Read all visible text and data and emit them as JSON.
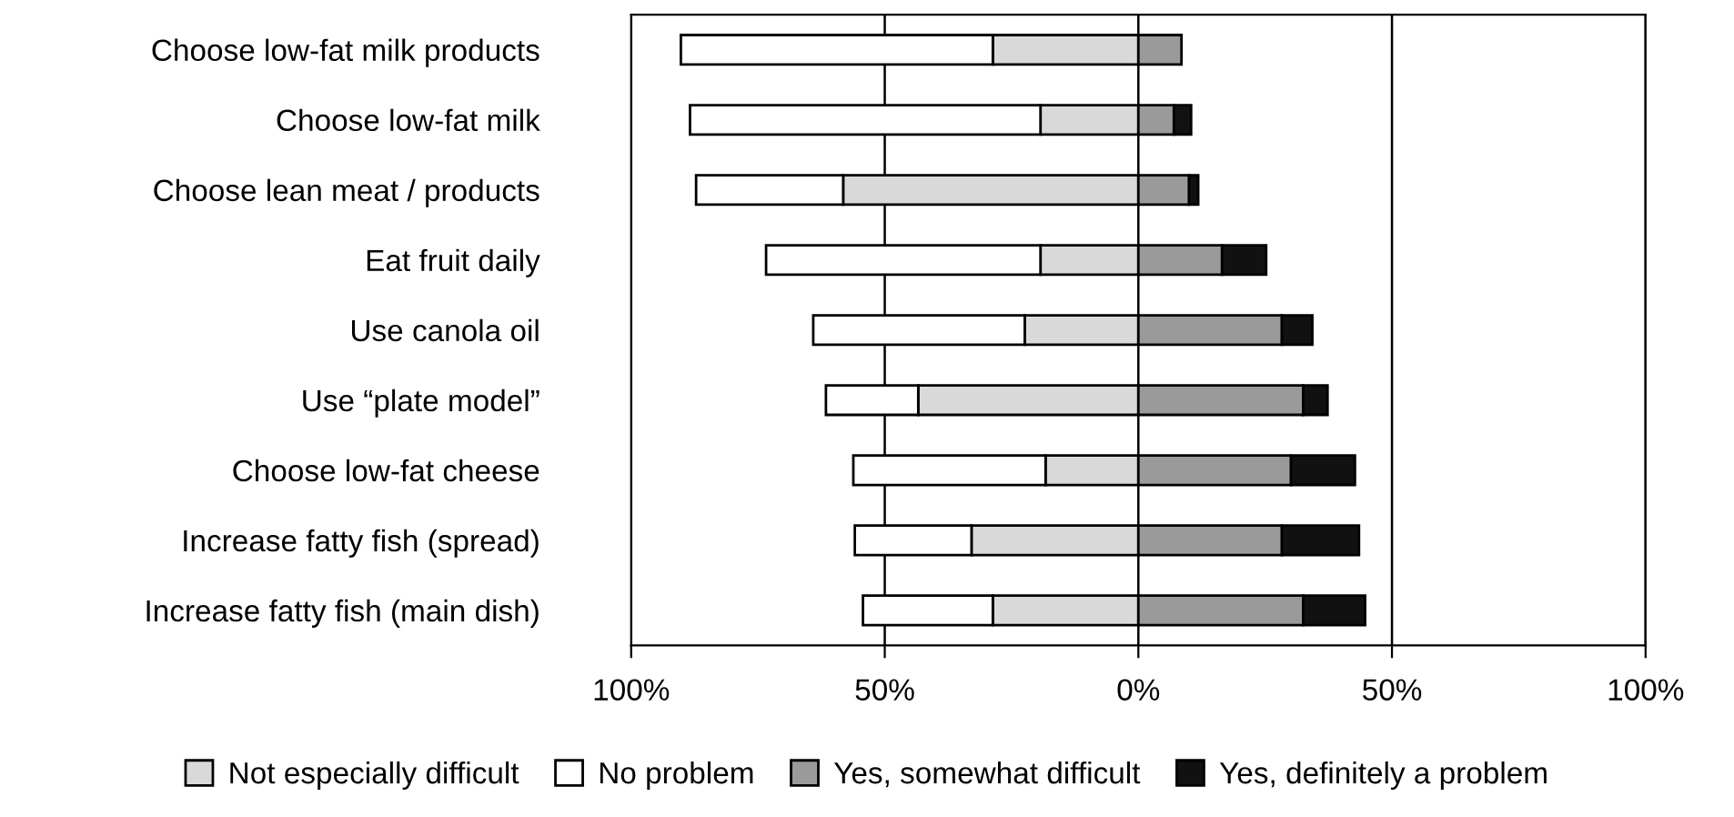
{
  "chart_data": {
    "type": "bar",
    "orientation": "horizontal",
    "stacked": true,
    "categories": [
      "Choose low-fat milk products",
      "Choose low-fat milk",
      "Choose lean meat / products",
      "Eat fruit daily",
      "Use canola oil",
      "Use “plate model”",
      "Choose low-fat cheese",
      "Increase fatty fish (spread)",
      "Increase fatty fish (main dish)"
    ],
    "series": [
      {
        "name": "Not especially difficult",
        "color": "#d9d9d9",
        "values": [
          -28.7,
          -19.3,
          -58.2,
          -19.3,
          -22.4,
          -43.4,
          -18.3,
          -32.9,
          -28.7
        ]
      },
      {
        "name": "No problem",
        "color": "#ffffff",
        "values": [
          -61.5,
          -69.1,
          -29,
          -54.1,
          -41.7,
          -18.2,
          -37.9,
          -23,
          -25.6
        ]
      },
      {
        "name": "Yes, somewhat difficult",
        "color": "#9a9a9a",
        "values": [
          8.5,
          7,
          10,
          16.5,
          28.3,
          32.5,
          30.1,
          28.3,
          32.5
        ]
      },
      {
        "name": "Yes, definitely a problem",
        "color": "#111111",
        "values": [
          null,
          3.4,
          1.8,
          8.7,
          6,
          4.8,
          12.6,
          15.2,
          12.2
        ]
      }
    ],
    "xlim": [
      -100,
      100
    ],
    "xticks": [
      {
        "value": -100,
        "label": "100%"
      },
      {
        "value": -50,
        "label": "50%"
      },
      {
        "value": 0,
        "label": "0%"
      },
      {
        "value": 50,
        "label": "50%"
      },
      {
        "value": 100,
        "label": "100%"
      }
    ],
    "grid": "x",
    "legend": "bottom"
  }
}
